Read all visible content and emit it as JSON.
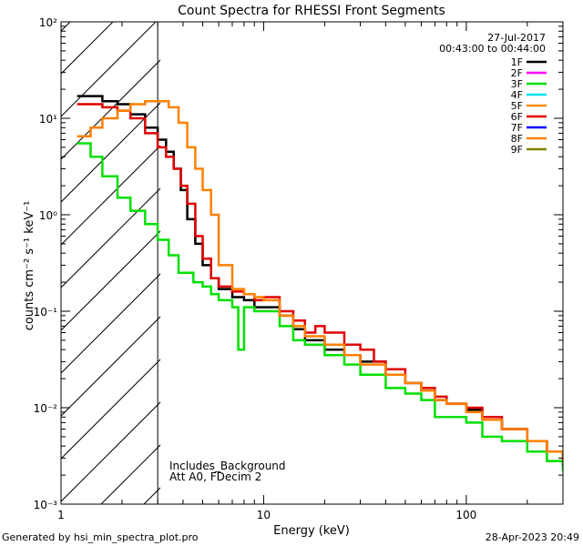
{
  "chart_data": {
    "type": "line",
    "title": "Count Spectra for RHESSI Front Segments",
    "xlabel": "Energy (keV)",
    "ylabel": "counts cm⁻² s⁻¹ keV⁻¹",
    "xscale": "log",
    "yscale": "log",
    "xlim": [
      1,
      300
    ],
    "ylim": [
      0.001,
      100
    ],
    "x_tick_labels": [
      {
        "value": 1,
        "label": "1"
      },
      {
        "value": 10,
        "label": "10"
      },
      {
        "value": 100,
        "label": "100"
      }
    ],
    "y_tick_labels": [
      {
        "value": 0.001,
        "label": "10⁻³"
      },
      {
        "value": 0.01,
        "label": "10⁻²"
      },
      {
        "value": 0.1,
        "label": "10⁻¹"
      },
      {
        "value": 1,
        "label": "10⁰"
      },
      {
        "value": 10,
        "label": "10¹"
      },
      {
        "value": 100,
        "label": "10²"
      }
    ],
    "date": "27-Jul-2017",
    "time_range": "00:43:00 to 00:44:00",
    "shaded_region_max_kev": 3,
    "annotations": [
      "Includes_Background",
      "Att A0, FDecim 2"
    ],
    "legend": [
      {
        "name": "1F",
        "color": "#000000"
      },
      {
        "name": "2F",
        "color": "#ff00ff"
      },
      {
        "name": "3F",
        "color": "#00e000"
      },
      {
        "name": "4F",
        "color": "#00e0ff"
      },
      {
        "name": "5F",
        "color": "#ff8c00"
      },
      {
        "name": "6F",
        "color": "#e00000"
      },
      {
        "name": "7F",
        "color": "#0000ff"
      },
      {
        "name": "8F",
        "color": "#ff8000"
      },
      {
        "name": "9F",
        "color": "#808000"
      }
    ],
    "series": [
      {
        "name": "1F",
        "color": "#000000",
        "points": [
          [
            1.2,
            17
          ],
          [
            1.4,
            17
          ],
          [
            1.6,
            15
          ],
          [
            1.9,
            14
          ],
          [
            2.2,
            11
          ],
          [
            2.6,
            8
          ],
          [
            3.0,
            6
          ],
          [
            3.3,
            4.5
          ],
          [
            3.6,
            3
          ],
          [
            3.9,
            1.8
          ],
          [
            4.2,
            0.9
          ],
          [
            4.6,
            0.5
          ],
          [
            5,
            0.3
          ],
          [
            5.5,
            0.22
          ],
          [
            6,
            0.17
          ],
          [
            7,
            0.14
          ],
          [
            8,
            0.13
          ],
          [
            9,
            0.11
          ],
          [
            10,
            0.11
          ],
          [
            12,
            0.09
          ],
          [
            14,
            0.065
          ],
          [
            16,
            0.05
          ],
          [
            20,
            0.04
          ],
          [
            25,
            0.035
          ],
          [
            30,
            0.03
          ],
          [
            40,
            0.022
          ],
          [
            50,
            0.018
          ],
          [
            60,
            0.015
          ],
          [
            70,
            0.012
          ],
          [
            80,
            0.011
          ],
          [
            100,
            0.0095
          ],
          [
            120,
            0.0075
          ],
          [
            150,
            0.006
          ],
          [
            200,
            0.0045
          ],
          [
            250,
            0.0035
          ],
          [
            300,
            0.0025
          ]
        ]
      },
      {
        "name": "3F",
        "color": "#00e000",
        "points": [
          [
            1.2,
            5.5
          ],
          [
            1.4,
            4
          ],
          [
            1.6,
            2.5
          ],
          [
            1.9,
            1.5
          ],
          [
            2.2,
            1.1
          ],
          [
            2.6,
            0.8
          ],
          [
            3.0,
            0.55
          ],
          [
            3.4,
            0.38
          ],
          [
            3.8,
            0.25
          ],
          [
            4.5,
            0.2
          ],
          [
            5,
            0.18
          ],
          [
            5.5,
            0.15
          ],
          [
            6,
            0.13
          ],
          [
            7,
            0.11
          ],
          [
            7.5,
            0.04
          ],
          [
            8,
            0.11
          ],
          [
            9,
            0.1
          ],
          [
            10,
            0.1
          ],
          [
            12,
            0.07
          ],
          [
            14,
            0.05
          ],
          [
            16,
            0.045
          ],
          [
            20,
            0.035
          ],
          [
            25,
            0.028
          ],
          [
            30,
            0.022
          ],
          [
            40,
            0.016
          ],
          [
            50,
            0.014
          ],
          [
            60,
            0.012
          ],
          [
            70,
            0.008
          ],
          [
            80,
            0.008
          ],
          [
            100,
            0.007
          ],
          [
            120,
            0.005
          ],
          [
            150,
            0.0045
          ],
          [
            200,
            0.0035
          ],
          [
            250,
            0.0028
          ],
          [
            300,
            0.0022
          ]
        ]
      },
      {
        "name": "6F",
        "color": "#e00000",
        "points": [
          [
            1.2,
            14
          ],
          [
            1.4,
            14
          ],
          [
            1.6,
            13
          ],
          [
            1.9,
            12
          ],
          [
            2.2,
            10
          ],
          [
            2.6,
            7
          ],
          [
            3.0,
            5
          ],
          [
            3.3,
            4
          ],
          [
            3.6,
            3
          ],
          [
            3.9,
            2
          ],
          [
            4.2,
            1.3
          ],
          [
            4.6,
            0.6
          ],
          [
            5,
            0.35
          ],
          [
            5.5,
            0.22
          ],
          [
            6,
            0.18
          ],
          [
            7,
            0.16
          ],
          [
            8,
            0.15
          ],
          [
            9,
            0.13
          ],
          [
            10,
            0.14
          ],
          [
            12,
            0.1
          ],
          [
            14,
            0.08
          ],
          [
            16,
            0.06
          ],
          [
            18,
            0.07
          ],
          [
            20,
            0.06
          ],
          [
            25,
            0.045
          ],
          [
            30,
            0.04
          ],
          [
            35,
            0.03
          ],
          [
            40,
            0.025
          ],
          [
            50,
            0.018
          ],
          [
            60,
            0.016
          ],
          [
            70,
            0.013
          ],
          [
            80,
            0.011
          ],
          [
            100,
            0.01
          ],
          [
            120,
            0.008
          ],
          [
            150,
            0.006
          ],
          [
            200,
            0.0045
          ],
          [
            250,
            0.0035
          ],
          [
            300,
            0.0028
          ]
        ]
      },
      {
        "name": "8F",
        "color": "#ff8000",
        "points": [
          [
            1.2,
            6.5
          ],
          [
            1.4,
            8
          ],
          [
            1.6,
            10
          ],
          [
            1.9,
            12
          ],
          [
            2.2,
            14
          ],
          [
            2.6,
            15
          ],
          [
            3.0,
            15
          ],
          [
            3.4,
            13
          ],
          [
            3.8,
            9
          ],
          [
            4.2,
            5
          ],
          [
            4.6,
            3
          ],
          [
            5,
            1.8
          ],
          [
            5.5,
            1
          ],
          [
            6,
            0.3
          ],
          [
            7,
            0.17
          ],
          [
            8,
            0.15
          ],
          [
            9,
            0.14
          ],
          [
            10,
            0.13
          ],
          [
            12,
            0.09
          ],
          [
            14,
            0.07
          ],
          [
            16,
            0.055
          ],
          [
            20,
            0.045
          ],
          [
            25,
            0.035
          ],
          [
            30,
            0.028
          ],
          [
            40,
            0.022
          ],
          [
            50,
            0.018
          ],
          [
            60,
            0.015
          ],
          [
            70,
            0.012
          ],
          [
            80,
            0.011
          ],
          [
            100,
            0.009
          ],
          [
            120,
            0.0075
          ],
          [
            150,
            0.006
          ],
          [
            200,
            0.0045
          ],
          [
            250,
            0.0035
          ],
          [
            300,
            0.0028
          ]
        ]
      }
    ]
  },
  "footer": {
    "generated_by": "Generated by hsi_min_spectra_plot.pro",
    "timestamp": "28-Apr-2023 20:49"
  }
}
